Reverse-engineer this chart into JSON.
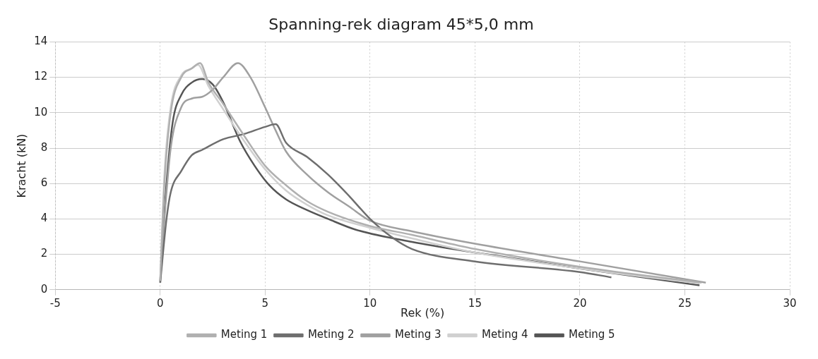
{
  "chart_data": {
    "type": "line",
    "title": "Spanning-rek diagram 45*5,0 mm",
    "xlabel": "Rek (%)",
    "ylabel": "Kracht (kN)",
    "xlim": [
      -5,
      30
    ],
    "xticks": [
      -5,
      0,
      5,
      10,
      15,
      20,
      25,
      30
    ],
    "ylim": [
      0,
      14
    ],
    "yticks": [
      0,
      2,
      4,
      6,
      8,
      10,
      12,
      14
    ],
    "grid": true,
    "legend": "bottom",
    "marker": "none",
    "line_style": "solid",
    "series": [
      {
        "name": "Meting 1",
        "color": "#b0b0b0",
        "x": [
          0,
          0.2,
          0.5,
          1,
          1.5,
          1.9,
          2.3,
          3,
          4,
          5,
          6,
          7,
          8,
          10,
          12,
          15,
          20,
          25.8
        ],
        "values": [
          0.5,
          6,
          10,
          12,
          12.5,
          12.8,
          11.7,
          10.5,
          8.7,
          7,
          5.9,
          5,
          4.4,
          3.6,
          3.1,
          2.3,
          1.3,
          0.4
        ]
      },
      {
        "name": "Meting 2",
        "color": "#6e6e6e",
        "x": [
          0,
          0.3,
          0.5,
          1,
          1.5,
          2,
          3,
          4,
          5,
          5.5,
          6,
          7,
          8,
          9,
          10,
          11,
          12,
          15,
          20,
          21.5
        ],
        "values": [
          0.4,
          4,
          5.5,
          6.7,
          7.6,
          7.9,
          8.5,
          8.8,
          9.2,
          9.35,
          8.3,
          7.5,
          6.5,
          5.3,
          4,
          3,
          2.3,
          1.6,
          1,
          0.7
        ]
      },
      {
        "name": "Meting 3",
        "color": "#a0a0a0",
        "x": [
          0,
          0.2,
          0.5,
          1,
          1.5,
          2,
          2.5,
          3,
          3.7,
          4.3,
          5,
          5.5,
          6,
          7,
          8,
          9,
          10,
          12,
          15,
          20,
          26
        ],
        "values": [
          0.4,
          4,
          8,
          10.3,
          10.8,
          10.9,
          11.3,
          12,
          12.8,
          12,
          10.3,
          9,
          7.8,
          6.5,
          5.5,
          4.7,
          3.9,
          3.3,
          2.6,
          1.6,
          0.4
        ]
      },
      {
        "name": "Meting 4",
        "color": "#d0d0d0",
        "x": [
          0,
          0.2,
          0.5,
          1,
          1.5,
          1.8,
          2.3,
          3,
          4,
          5,
          6,
          7,
          8,
          10,
          12,
          15,
          20,
          25.7
        ],
        "values": [
          0.5,
          6.5,
          10.3,
          12.1,
          12.5,
          12.7,
          11.5,
          10.2,
          8.4,
          6.8,
          5.6,
          4.8,
          4.2,
          3.5,
          2.9,
          2.1,
          1.2,
          0.35
        ]
      },
      {
        "name": "Meting 5",
        "color": "#555555",
        "x": [
          0,
          0.3,
          0.6,
          1,
          1.5,
          2,
          2.5,
          3,
          3.8,
          4.5,
          5.2,
          6,
          7,
          8,
          9.3,
          12,
          15,
          20,
          25.7
        ],
        "values": [
          0.5,
          6,
          9.5,
          11,
          11.7,
          11.9,
          11.6,
          10.6,
          8.4,
          7,
          5.9,
          5.1,
          4.5,
          4,
          3.4,
          2.7,
          2.1,
          1.2,
          0.25
        ]
      }
    ]
  }
}
